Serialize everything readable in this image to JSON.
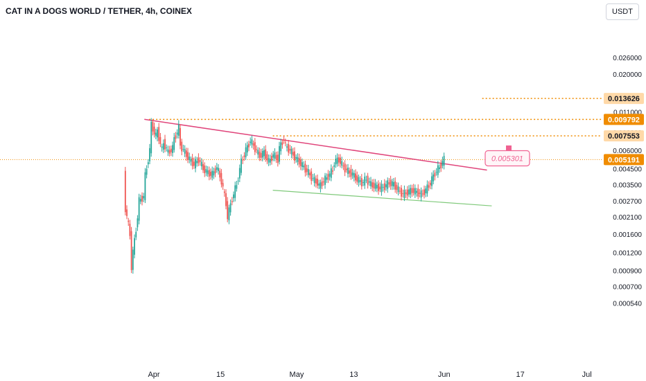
{
  "header": {
    "symbol_title": "CAT IN A DOGS WORLD / TETHER, 4h, COINEX"
  },
  "currency_button": {
    "label": "USDT"
  },
  "colors": {
    "up": "#26a69a",
    "down": "#ef5350",
    "trendline": "#e0457b",
    "support": "#7fc97a",
    "level": "#f08c00",
    "target": "#f06292"
  },
  "chart_data": {
    "type": "candlestick",
    "y_scale": "log",
    "y_axis_ticks": [
      "0.026000",
      "0.020000",
      "0.011000",
      "0.008000",
      "0.006000",
      "0.004500",
      "0.003500",
      "0.002700",
      "0.002100",
      "0.001600",
      "0.001200",
      "0.000900",
      "0.000700",
      "0.000540"
    ],
    "x_axis_ticks": [
      "Apr",
      "15",
      "May",
      "13",
      "Jun",
      "17",
      "Jul"
    ],
    "price_levels": [
      {
        "label": "0.013626",
        "value": 0.013626,
        "style": "dotted",
        "highlight": false
      },
      {
        "label": "0.009792",
        "value": 0.009792,
        "style": "dotted",
        "highlight": true
      },
      {
        "label": "0.007553",
        "value": 0.007553,
        "style": "dotted",
        "highlight": false
      },
      {
        "label": "0.005191",
        "value": 0.005191,
        "style": "dotted",
        "highlight": true,
        "current": true
      }
    ],
    "target_annotation": {
      "label": "0.005301",
      "value": 0.005301
    },
    "resistance_trendline": {
      "start": [
        "Mar 30",
        0.0098
      ],
      "end": [
        "Jun 10",
        0.0044
      ]
    },
    "support_trendline": {
      "start": [
        "Apr 26",
        0.0032
      ],
      "end": [
        "Jun 11",
        0.0025
      ]
    },
    "series": [
      {
        "type": "candles",
        "path": [
          [
            "Mar 26",
            0.0041
          ],
          [
            "Mar 26",
            0.0024
          ],
          [
            "Mar 27",
            0.0016
          ],
          [
            "Mar 27",
            0.00095
          ],
          [
            "Mar 27",
            0.0012
          ],
          [
            "Mar 28",
            0.0021
          ],
          [
            "Mar 28",
            0.0027
          ],
          [
            "Mar 29",
            0.0029
          ],
          [
            "Mar 29",
            0.004
          ],
          [
            "Mar 30",
            0.006
          ],
          [
            "Mar 30",
            0.009
          ],
          [
            "Mar 31",
            0.0075
          ],
          [
            "Mar 31",
            0.0082
          ],
          [
            "Apr 1",
            0.006
          ],
          [
            "Apr 1",
            0.0068
          ],
          [
            "Apr 2",
            0.0058
          ],
          [
            "Apr 3",
            0.0062
          ],
          [
            "Apr 3",
            0.0072
          ],
          [
            "Apr 4",
            0.0085
          ],
          [
            "Apr 4",
            0.0065
          ],
          [
            "Apr 5",
            0.0058
          ],
          [
            "Apr 6",
            0.0052
          ],
          [
            "Apr 7",
            0.0048
          ],
          [
            "Apr 8",
            0.0052
          ],
          [
            "Apr 9",
            0.0045
          ],
          [
            "Apr 10",
            0.0042
          ],
          [
            "Apr 11",
            0.0041
          ],
          [
            "Apr 12",
            0.0046
          ],
          [
            "Apr 13",
            0.0037
          ],
          [
            "Apr 14",
            0.0026
          ],
          [
            "Apr 14",
            0.0021
          ],
          [
            "Apr 15",
            0.0028
          ],
          [
            "Apr 16",
            0.0035
          ],
          [
            "Apr 17",
            0.005
          ],
          [
            "Apr 18",
            0.006
          ],
          [
            "Apr 19",
            0.007
          ],
          [
            "Apr 20",
            0.0062
          ],
          [
            "Apr 21",
            0.0055
          ],
          [
            "Apr 22",
            0.0058
          ],
          [
            "Apr 23",
            0.005
          ],
          [
            "Apr 24",
            0.0056
          ],
          [
            "Apr 25",
            0.0052
          ],
          [
            "Apr 25",
            0.0062
          ],
          [
            "Apr 26",
            0.0072
          ],
          [
            "Apr 26",
            0.0064
          ],
          [
            "Apr 27",
            0.006
          ],
          [
            "Apr 28",
            0.0054
          ],
          [
            "Apr 29",
            0.005
          ],
          [
            "Apr 30",
            0.0046
          ],
          [
            "May 1",
            0.0042
          ],
          [
            "May 2",
            0.0038
          ],
          [
            "May 3",
            0.0036
          ],
          [
            "May 3",
            0.0034
          ],
          [
            "May 4",
            0.0037
          ],
          [
            "May 5",
            0.004
          ],
          [
            "May 6",
            0.0044
          ],
          [
            "May 6",
            0.005
          ],
          [
            "May 7",
            0.0052
          ],
          [
            "May 8",
            0.0046
          ],
          [
            "May 9",
            0.0043
          ],
          [
            "May 10",
            0.0041
          ],
          [
            "May 11",
            0.0038
          ],
          [
            "May 12",
            0.0036
          ],
          [
            "May 13",
            0.0038
          ],
          [
            "May 14",
            0.0035
          ],
          [
            "May 15",
            0.0034
          ],
          [
            "May 16",
            0.0033
          ],
          [
            "May 17",
            0.0034
          ],
          [
            "May 18",
            0.0036
          ],
          [
            "May 19",
            0.0035
          ],
          [
            "May 20",
            0.0032
          ],
          [
            "May 21",
            0.003
          ],
          [
            "May 22",
            0.0031
          ],
          [
            "May 23",
            0.0032
          ],
          [
            "May 24",
            0.0031
          ],
          [
            "May 25",
            0.003
          ],
          [
            "May 26",
            0.0032
          ],
          [
            "May 27",
            0.0036
          ],
          [
            "May 28",
            0.0042
          ],
          [
            "May 29",
            0.0046
          ],
          [
            "May 30",
            0.0052
          ]
        ]
      }
    ]
  }
}
